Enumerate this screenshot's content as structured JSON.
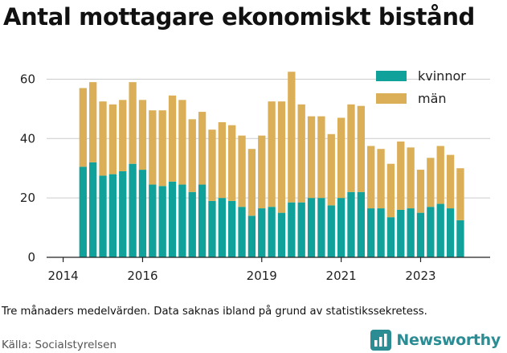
{
  "title": "Antal mottagare ekonomiskt bistånd",
  "note": "Tre månaders medelvärden. Data saknas ibland på grund av statistikssekretess.",
  "source": "Källa: Socialstyrelsen",
  "brand": {
    "name": "Newsworthy",
    "icon": "newsworthy-chart-icon"
  },
  "colors": {
    "kvinnor": "#10a19a",
    "man": "#dbae58",
    "axis": "#222222",
    "grid": "#cccccc",
    "brand": "#2c8c93"
  },
  "chart_data": {
    "type": "bar",
    "stacked": true,
    "x": [
      "2014-07",
      "2014-10",
      "2015-01",
      "2015-04",
      "2015-07",
      "2015-10",
      "2016-01",
      "2016-04",
      "2016-07",
      "2016-10",
      "2017-01",
      "2017-04",
      "2017-07",
      "2017-10",
      "2018-01",
      "2018-04",
      "2018-07",
      "2018-10",
      "2019-01",
      "2019-04",
      "2019-07",
      "2019-10",
      "2020-01",
      "2020-04",
      "2020-07",
      "2020-10",
      "2021-01",
      "2021-04",
      "2021-07",
      "2021-10",
      "2022-01",
      "2022-04",
      "2022-07",
      "2022-10",
      "2023-01",
      "2023-04",
      "2023-07",
      "2023-10",
      "2024-01",
      "2024-04"
    ],
    "series": [
      {
        "name": "kvinnor",
        "values": [
          30.5,
          32,
          27.5,
          28,
          29,
          31.5,
          29.5,
          24.5,
          24,
          25.5,
          24.5,
          22,
          24.5,
          19,
          20,
          19,
          17,
          14,
          16.5,
          17,
          15,
          18.5,
          18.5,
          20,
          20,
          17.5,
          20,
          22,
          22,
          16.5,
          16.5,
          13.5,
          16,
          16.5,
          15,
          17,
          18,
          16.5,
          12.5,
          null
        ]
      },
      {
        "name": "män",
        "values": [
          26.5,
          27,
          25,
          23.5,
          24,
          27.5,
          23.5,
          25,
          25.5,
          29,
          28.5,
          24.5,
          24.5,
          24,
          25.5,
          25.5,
          24,
          22.5,
          24.5,
          35.5,
          37.5,
          44,
          33,
          27.5,
          27.5,
          24,
          27,
          29.5,
          29,
          21,
          20,
          18,
          23,
          20.5,
          14.5,
          16.5,
          19.5,
          18,
          17.5,
          null
        ]
      }
    ],
    "xticks": [
      {
        "label": "2014",
        "x": "2014-01"
      },
      {
        "label": "2016",
        "x": "2016-01"
      },
      {
        "label": "2019",
        "x": "2019-01"
      },
      {
        "label": "2021",
        "x": "2021-01"
      },
      {
        "label": "2023",
        "x": "2023-01"
      }
    ],
    "yticks": [
      "0",
      "20",
      "40",
      "60"
    ],
    "ylim": [
      0,
      65
    ],
    "xlim": [
      "2013-08",
      "2024-10"
    ],
    "grid": "horizontal",
    "legend": {
      "position": "top-right",
      "entries": [
        "kvinnor",
        "män"
      ]
    },
    "xlabel": "",
    "ylabel": ""
  }
}
